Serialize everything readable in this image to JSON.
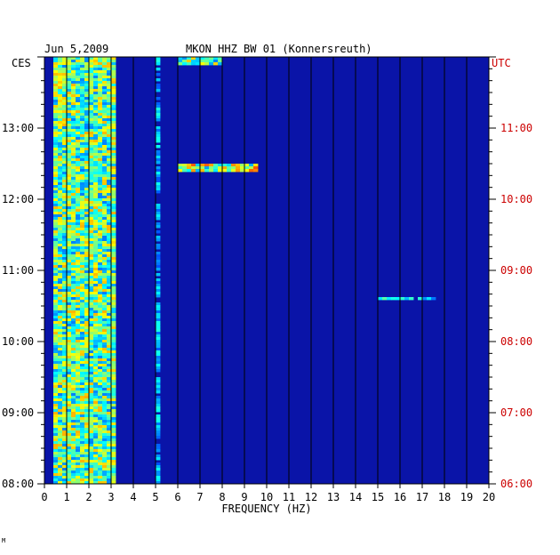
{
  "chart_data": {
    "type": "heatmap",
    "title": "MKON HHZ BW 01 (Konnersreuth)",
    "date": "Jun 5,2009",
    "left_timezone": "CES",
    "right_timezone": "UTC",
    "xlabel": "FREQUENCY (HZ)",
    "xlim": [
      0,
      20
    ],
    "x_ticks": [
      "0",
      "1",
      "2",
      "3",
      "4",
      "5",
      "6",
      "7",
      "8",
      "9",
      "10",
      "11",
      "12",
      "13",
      "14",
      "15",
      "16",
      "17",
      "18",
      "19",
      "20"
    ],
    "left_time_range": [
      "08:00",
      "14:00"
    ],
    "left_time_ticks": [
      "08:00",
      "09:00",
      "10:00",
      "11:00",
      "12:00",
      "13:00"
    ],
    "right_time_ticks": [
      "06:00",
      "07:00",
      "08:00",
      "09:00",
      "10:00",
      "11:00"
    ],
    "colors": {
      "background": "#0a14a8",
      "grid": "#000000",
      "utc_axis": "#cc0000"
    },
    "features": [
      {
        "name": "strong band",
        "freq_range": [
          0.5,
          3.2
        ],
        "time_range": [
          "08:00",
          "14:00"
        ],
        "level": 0.7
      },
      {
        "name": "persistent line",
        "freq_range": [
          3.0,
          3.15
        ],
        "time_range": [
          "08:00",
          "14:00"
        ],
        "level": 0.55
      },
      {
        "name": "band",
        "freq_range": [
          5.0,
          5.1
        ],
        "time_range": [
          "08:00",
          "14:00"
        ],
        "level": 0.4
      },
      {
        "name": "event",
        "freq_range": [
          6.0,
          9.5
        ],
        "time_range": [
          "12:25",
          "12:30"
        ],
        "level": 0.8
      },
      {
        "name": "event",
        "freq_range": [
          6.0,
          8.0
        ],
        "time_range": [
          "13:55",
          "14:00"
        ],
        "level": 0.7
      },
      {
        "name": "event",
        "freq_range": [
          15.0,
          17.5
        ],
        "time_range": [
          "10:36",
          "10:37"
        ],
        "level": 0.5
      }
    ]
  },
  "footer_mark": "M"
}
